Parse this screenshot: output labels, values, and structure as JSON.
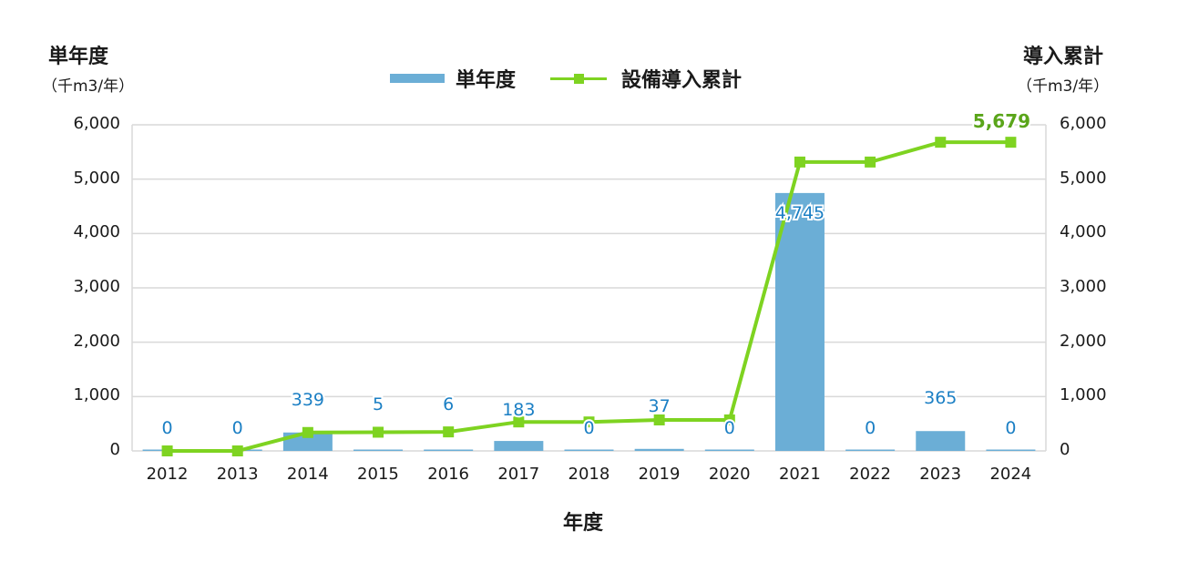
{
  "legend": {
    "bar_label": "単年度",
    "line_label": "設備導入累計"
  },
  "left_axis": {
    "title": "単年度",
    "unit": "（千m3/年）"
  },
  "right_axis": {
    "title": "導入累計",
    "unit": "（千m3/年）"
  },
  "x_axis": {
    "title": "年度"
  },
  "colors": {
    "bar": "#6baed6",
    "line": "#7ed321",
    "bar_label": "#1b7fc4",
    "line_label": "#5aa51a",
    "grid": "#d9d9d9"
  },
  "chart_data": {
    "type": "bar+line",
    "title": "",
    "xlabel": "年度",
    "ylabel": "単年度（千m3/年）",
    "y2label": "導入累計（千m3/年）",
    "ylim": [
      0,
      6000
    ],
    "y2lim": [
      0,
      6000
    ],
    "yticks": [
      "0",
      "1,000",
      "2,000",
      "3,000",
      "4,000",
      "5,000",
      "6,000"
    ],
    "grid": true,
    "legend_position": "top",
    "categories": [
      "2012",
      "2013",
      "2014",
      "2015",
      "2016",
      "2017",
      "2018",
      "2019",
      "2020",
      "2021",
      "2022",
      "2023",
      "2024"
    ],
    "series": [
      {
        "name": "単年度",
        "type": "bar",
        "axis": "left",
        "values": [
          0,
          0,
          339,
          5,
          6,
          183,
          0,
          37,
          0,
          4745,
          0,
          365,
          0
        ],
        "labels": [
          "0",
          "0",
          "339",
          "5",
          "6",
          "183",
          "0",
          "37",
          "0",
          "4,745",
          "0",
          "365",
          "0"
        ]
      },
      {
        "name": "設備導入累計",
        "type": "line",
        "axis": "right",
        "values": [
          0,
          0,
          339,
          344,
          350,
          533,
          533,
          570,
          570,
          5315,
          5315,
          5679,
          5679
        ],
        "annotations": [
          {
            "index": 12,
            "text": "5,679"
          }
        ]
      }
    ]
  }
}
